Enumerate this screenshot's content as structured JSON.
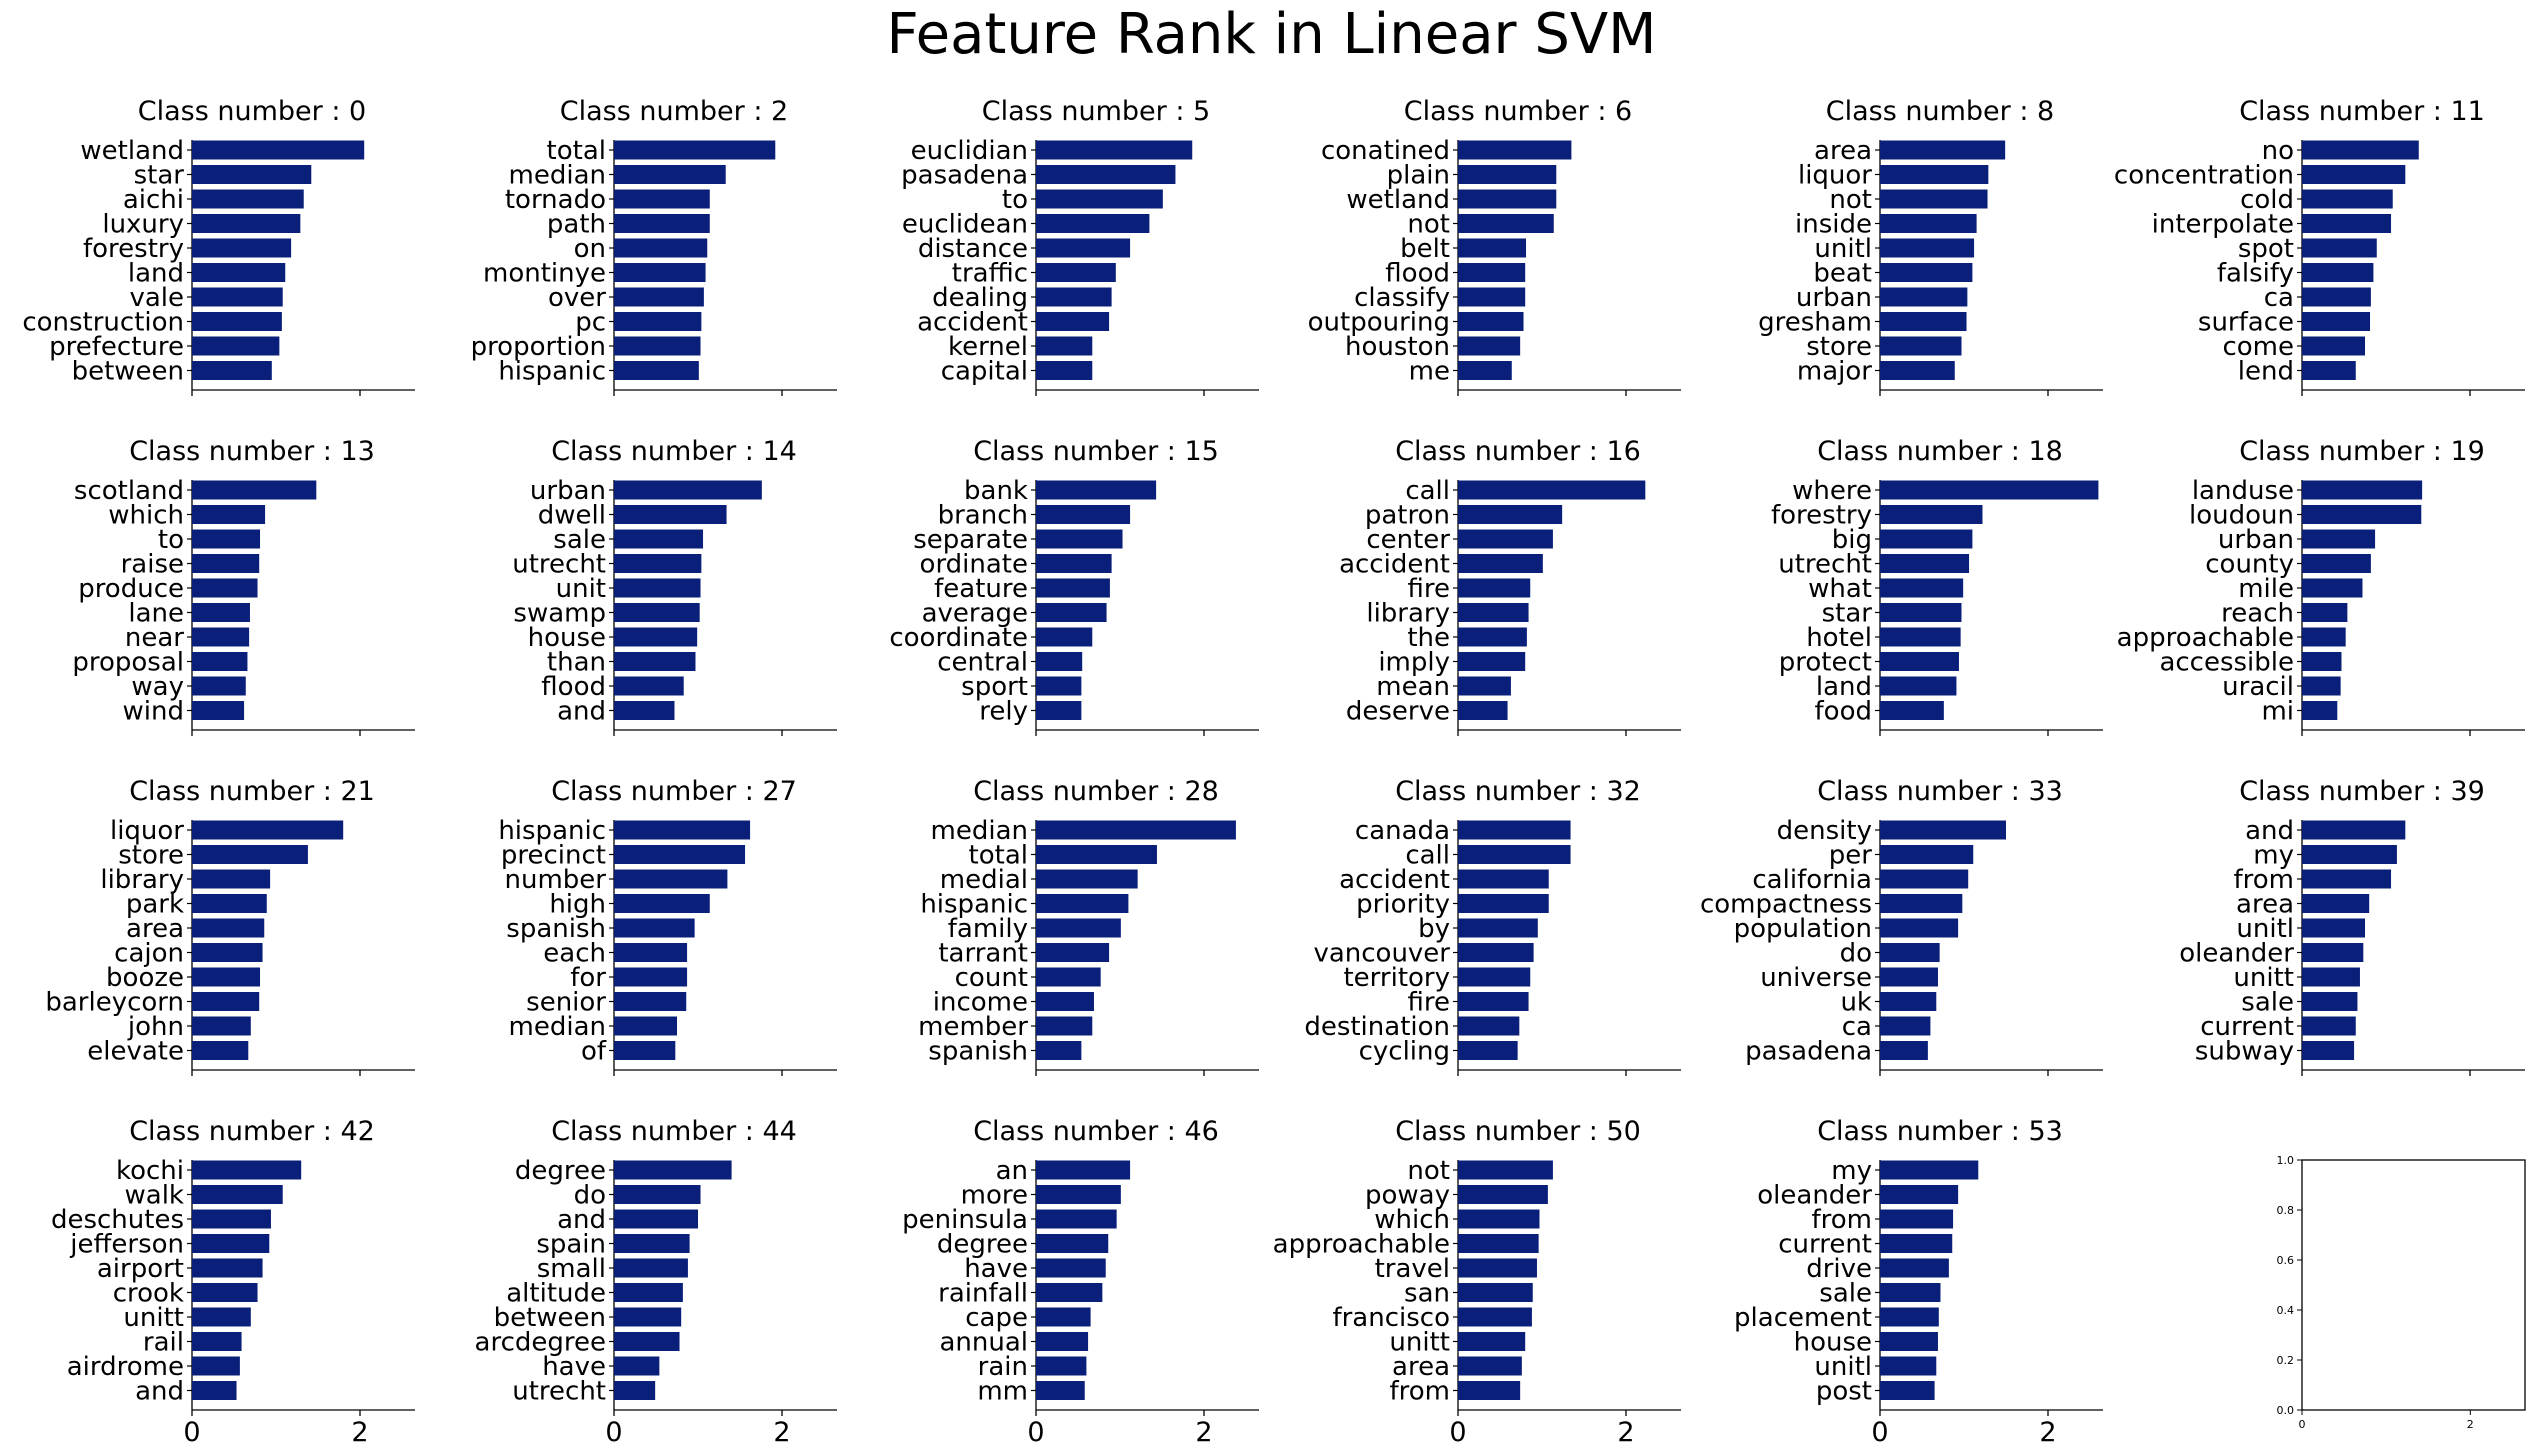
{
  "title": "Feature Rank in Linear SVM",
  "bar_color": "#0a1f7a",
  "chart_data": [
    {
      "type": "bar",
      "orientation": "horizontal",
      "title": "Class number : 0",
      "categories": [
        "wetland",
        "star",
        "aichi",
        "luxury",
        "forestry",
        "land",
        "vale",
        "construction",
        "prefecture",
        "between"
      ],
      "values": [
        2.05,
        1.42,
        1.33,
        1.29,
        1.18,
        1.11,
        1.08,
        1.07,
        1.04,
        0.95
      ],
      "xlim": [
        0,
        2.65
      ],
      "xticks": [
        0,
        2
      ]
    },
    {
      "type": "bar",
      "orientation": "horizontal",
      "title": "Class number : 2",
      "categories": [
        "total",
        "median",
        "tornado",
        "path",
        "on",
        "montinye",
        "over",
        "pc",
        "proportion",
        "hispanic"
      ],
      "values": [
        1.92,
        1.33,
        1.14,
        1.14,
        1.11,
        1.09,
        1.07,
        1.04,
        1.03,
        1.01
      ],
      "xlim": [
        0,
        2.65
      ],
      "xticks": [
        0,
        2
      ]
    },
    {
      "type": "bar",
      "orientation": "horizontal",
      "title": "Class number : 5",
      "categories": [
        "euclidian",
        "pasadena",
        "to",
        "euclidean",
        "distance",
        "traffic",
        "dealing",
        "accident",
        "kernel",
        "capital"
      ],
      "values": [
        1.86,
        1.66,
        1.51,
        1.35,
        1.12,
        0.95,
        0.9,
        0.87,
        0.67,
        0.67
      ],
      "xlim": [
        0,
        2.65
      ],
      "xticks": [
        0,
        2
      ]
    },
    {
      "type": "bar",
      "orientation": "horizontal",
      "title": "Class number : 6",
      "categories": [
        "conatined",
        "plain",
        "wetland",
        "not",
        "belt",
        "flood",
        "classify",
        "outpouring",
        "houston",
        "me"
      ],
      "values": [
        1.35,
        1.17,
        1.17,
        1.14,
        0.81,
        0.8,
        0.8,
        0.78,
        0.74,
        0.64
      ],
      "xlim": [
        0,
        2.65
      ],
      "xticks": [
        0,
        2
      ]
    },
    {
      "type": "bar",
      "orientation": "horizontal",
      "title": "Class number : 8",
      "categories": [
        "area",
        "liquor",
        "not",
        "inside",
        "unitl",
        "beat",
        "urban",
        "gresham",
        "store",
        "major"
      ],
      "values": [
        1.49,
        1.29,
        1.28,
        1.15,
        1.12,
        1.1,
        1.04,
        1.03,
        0.97,
        0.89
      ],
      "xlim": [
        0,
        2.65
      ],
      "xticks": [
        0,
        2
      ]
    },
    {
      "type": "bar",
      "orientation": "horizontal",
      "title": "Class number : 11",
      "categories": [
        "no",
        "concentration",
        "cold",
        "interpolate",
        "spot",
        "falsify",
        "ca",
        "surface",
        "come",
        "lend"
      ],
      "values": [
        1.39,
        1.23,
        1.08,
        1.06,
        0.89,
        0.85,
        0.82,
        0.81,
        0.75,
        0.64
      ],
      "xlim": [
        0,
        2.65
      ],
      "xticks": [
        0,
        2
      ]
    },
    {
      "type": "bar",
      "orientation": "horizontal",
      "title": "Class number : 13",
      "categories": [
        "scotland",
        "which",
        "to",
        "raise",
        "produce",
        "lane",
        "near",
        "proposal",
        "way",
        "wind"
      ],
      "values": [
        1.48,
        0.87,
        0.81,
        0.8,
        0.78,
        0.69,
        0.68,
        0.66,
        0.64,
        0.62
      ],
      "xlim": [
        0,
        2.65
      ],
      "xticks": [
        0,
        2
      ]
    },
    {
      "type": "bar",
      "orientation": "horizontal",
      "title": "Class number : 14",
      "categories": [
        "urban",
        "dwell",
        "sale",
        "utrecht",
        "unit",
        "swamp",
        "house",
        "than",
        "flood",
        "and"
      ],
      "values": [
        1.76,
        1.34,
        1.06,
        1.04,
        1.03,
        1.02,
        0.99,
        0.97,
        0.83,
        0.72
      ],
      "xlim": [
        0,
        2.65
      ],
      "xticks": [
        0,
        2
      ]
    },
    {
      "type": "bar",
      "orientation": "horizontal",
      "title": "Class number : 15",
      "categories": [
        "bank",
        "branch",
        "separate",
        "ordinate",
        "feature",
        "average",
        "coordinate",
        "central",
        "sport",
        "rely"
      ],
      "values": [
        1.43,
        1.12,
        1.03,
        0.9,
        0.88,
        0.84,
        0.67,
        0.55,
        0.54,
        0.54
      ],
      "xlim": [
        0,
        2.65
      ],
      "xticks": [
        0,
        2
      ]
    },
    {
      "type": "bar",
      "orientation": "horizontal",
      "title": "Class number : 16",
      "categories": [
        "call",
        "patron",
        "center",
        "accident",
        "fire",
        "library",
        "the",
        "imply",
        "mean",
        "deserve"
      ],
      "values": [
        2.23,
        1.24,
        1.13,
        1.01,
        0.86,
        0.84,
        0.82,
        0.8,
        0.63,
        0.59
      ],
      "xlim": [
        0,
        2.65
      ],
      "xticks": [
        0,
        2
      ]
    },
    {
      "type": "bar",
      "orientation": "horizontal",
      "title": "Class number : 18",
      "categories": [
        "where",
        "forestry",
        "big",
        "utrecht",
        "what",
        "star",
        "hotel",
        "protect",
        "land",
        "food"
      ],
      "values": [
        2.6,
        1.22,
        1.1,
        1.06,
        0.99,
        0.97,
        0.96,
        0.94,
        0.91,
        0.76
      ],
      "xlim": [
        0,
        2.65
      ],
      "xticks": [
        0,
        2
      ]
    },
    {
      "type": "bar",
      "orientation": "horizontal",
      "title": "Class number : 19",
      "categories": [
        "landuse",
        "loudoun",
        "urban",
        "county",
        "mile",
        "reach",
        "approachable",
        "accessible",
        "uracil",
        "mi"
      ],
      "values": [
        1.43,
        1.42,
        0.87,
        0.82,
        0.72,
        0.54,
        0.52,
        0.47,
        0.46,
        0.42
      ],
      "xlim": [
        0,
        2.65
      ],
      "xticks": [
        0,
        2
      ]
    },
    {
      "type": "bar",
      "orientation": "horizontal",
      "title": "Class number : 21",
      "categories": [
        "liquor",
        "store",
        "library",
        "park",
        "area",
        "cajon",
        "booze",
        "barleycorn",
        "john",
        "elevate"
      ],
      "values": [
        1.8,
        1.38,
        0.93,
        0.89,
        0.86,
        0.84,
        0.81,
        0.8,
        0.7,
        0.67
      ],
      "xlim": [
        0,
        2.65
      ],
      "xticks": [
        0,
        2
      ]
    },
    {
      "type": "bar",
      "orientation": "horizontal",
      "title": "Class number : 27",
      "categories": [
        "hispanic",
        "precinct",
        "number",
        "high",
        "spanish",
        "each",
        "for",
        "senior",
        "median",
        "of"
      ],
      "values": [
        1.62,
        1.56,
        1.35,
        1.14,
        0.96,
        0.87,
        0.87,
        0.86,
        0.75,
        0.73
      ],
      "xlim": [
        0,
        2.65
      ],
      "xticks": [
        0,
        2
      ]
    },
    {
      "type": "bar",
      "orientation": "horizontal",
      "title": "Class number : 28",
      "categories": [
        "median",
        "total",
        "medial",
        "hispanic",
        "family",
        "tarrant",
        "count",
        "income",
        "member",
        "spanish"
      ],
      "values": [
        2.38,
        1.44,
        1.21,
        1.1,
        1.01,
        0.87,
        0.77,
        0.69,
        0.67,
        0.54
      ],
      "xlim": [
        0,
        2.65
      ],
      "xticks": [
        0,
        2
      ]
    },
    {
      "type": "bar",
      "orientation": "horizontal",
      "title": "Class number : 32",
      "categories": [
        "canada",
        "call",
        "accident",
        "priority",
        "by",
        "vancouver",
        "territory",
        "fire",
        "destination",
        "cycling"
      ],
      "values": [
        1.34,
        1.34,
        1.08,
        1.08,
        0.95,
        0.9,
        0.86,
        0.84,
        0.73,
        0.71
      ],
      "xlim": [
        0,
        2.65
      ],
      "xticks": [
        0,
        2
      ]
    },
    {
      "type": "bar",
      "orientation": "horizontal",
      "title": "Class number : 33",
      "categories": [
        "density",
        "per",
        "california",
        "compactness",
        "population",
        "do",
        "universe",
        "uk",
        "ca",
        "pasadena"
      ],
      "values": [
        1.5,
        1.11,
        1.05,
        0.98,
        0.93,
        0.71,
        0.69,
        0.67,
        0.6,
        0.57
      ],
      "xlim": [
        0,
        2.65
      ],
      "xticks": [
        0,
        2
      ]
    },
    {
      "type": "bar",
      "orientation": "horizontal",
      "title": "Class number : 39",
      "categories": [
        "and",
        "my",
        "from",
        "area",
        "unitl",
        "oleander",
        "unitt",
        "sale",
        "current",
        "subway"
      ],
      "values": [
        1.23,
        1.13,
        1.06,
        0.8,
        0.75,
        0.73,
        0.69,
        0.66,
        0.64,
        0.62
      ],
      "xlim": [
        0,
        2.65
      ],
      "xticks": [
        0,
        2
      ]
    },
    {
      "type": "bar",
      "orientation": "horizontal",
      "title": "Class number : 42",
      "categories": [
        "kochi",
        "walk",
        "deschutes",
        "jefferson",
        "airport",
        "crook",
        "unitt",
        "rail",
        "airdrome",
        "and"
      ],
      "values": [
        1.3,
        1.08,
        0.94,
        0.92,
        0.84,
        0.78,
        0.7,
        0.59,
        0.57,
        0.53
      ],
      "xlim": [
        0,
        2.65
      ],
      "xticks": [
        0,
        2
      ]
    },
    {
      "type": "bar",
      "orientation": "horizontal",
      "title": "Class number : 44",
      "categories": [
        "degree",
        "do",
        "and",
        "spain",
        "small",
        "altitude",
        "between",
        "arcdegree",
        "have",
        "utrecht"
      ],
      "values": [
        1.4,
        1.03,
        1.0,
        0.9,
        0.88,
        0.82,
        0.8,
        0.78,
        0.54,
        0.49
      ],
      "xlim": [
        0,
        2.65
      ],
      "xticks": [
        0,
        2
      ]
    },
    {
      "type": "bar",
      "orientation": "horizontal",
      "title": "Class number : 46",
      "categories": [
        "an",
        "more",
        "peninsula",
        "degree",
        "have",
        "rainfall",
        "cape",
        "annual",
        "rain",
        "mm"
      ],
      "values": [
        1.12,
        1.01,
        0.96,
        0.86,
        0.83,
        0.79,
        0.65,
        0.62,
        0.6,
        0.58
      ],
      "xlim": [
        0,
        2.65
      ],
      "xticks": [
        0,
        2
      ]
    },
    {
      "type": "bar",
      "orientation": "horizontal",
      "title": "Class number : 50",
      "categories": [
        "not",
        "poway",
        "which",
        "approachable",
        "travel",
        "san",
        "francisco",
        "unitt",
        "area",
        "from"
      ],
      "values": [
        1.13,
        1.07,
        0.97,
        0.96,
        0.94,
        0.89,
        0.88,
        0.8,
        0.76,
        0.74
      ],
      "xlim": [
        0,
        2.65
      ],
      "xticks": [
        0,
        2
      ]
    },
    {
      "type": "bar",
      "orientation": "horizontal",
      "title": "Class number : 53",
      "categories": [
        "my",
        "oleander",
        "from",
        "current",
        "drive",
        "sale",
        "placement",
        "house",
        "unitl",
        "post"
      ],
      "values": [
        1.17,
        0.93,
        0.87,
        0.86,
        0.82,
        0.72,
        0.7,
        0.69,
        0.67,
        0.65
      ],
      "xlim": [
        0,
        2.65
      ],
      "xticks": [
        0,
        2
      ]
    },
    {
      "type": "empty",
      "title": "",
      "yticks": [
        "0.0",
        "0.2",
        "0.4",
        "0.6",
        "0.8",
        "1.0"
      ],
      "xticks": [
        "0",
        "2"
      ],
      "xlim": [
        0,
        2.65
      ],
      "ylim": [
        0,
        1
      ]
    }
  ]
}
